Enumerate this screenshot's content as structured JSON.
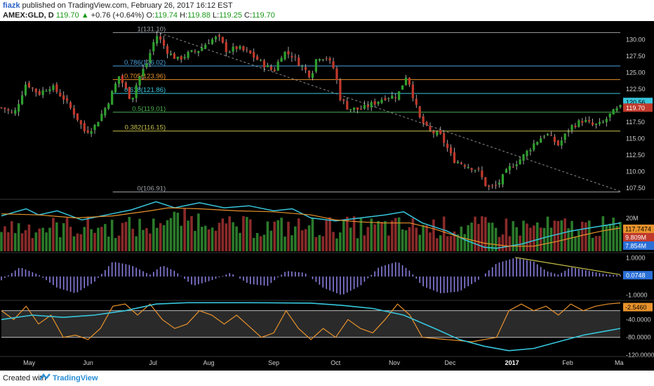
{
  "header": {
    "author": "fiazk",
    "published": "published on TradingView.com, February 26, 2017 16:12 EST",
    "symbol": "AMEX:GLD, D",
    "last": "119.70",
    "change": "+0.76 (+0.64%)",
    "open_label": "O:",
    "open": "119.74",
    "high_label": "H:",
    "high": "119.88",
    "low_label": "L:",
    "low": "119.25",
    "close_label": "C:",
    "close": "119.70"
  },
  "footer": {
    "created_with": "Created with",
    "brand": "TradingView"
  },
  "colors": {
    "up": "#2ea02e",
    "down": "#c0392b",
    "cyan": "#37c6dc",
    "orange": "#e8922c",
    "purple": "#8a7fe0",
    "bg": "#000000"
  },
  "chart_data": {
    "type": "candlestick",
    "x_labels": [
      "May",
      "Jun",
      "Jul",
      "Aug",
      "Sep",
      "Oct",
      "Nov",
      "Dec",
      "2017",
      "Feb",
      "Ma"
    ],
    "price_ticks": [
      "130.00",
      "127.50",
      "125.00",
      "122.50",
      "120.00",
      "117.50",
      "115.00",
      "112.50",
      "110.00",
      "107.50"
    ],
    "price_range": [
      106.0,
      132.2
    ],
    "fib_levels": [
      {
        "label": "1(131.10)",
        "value": 131.1,
        "color": "#9aa0a6"
      },
      {
        "label": "0.786(126.02)",
        "value": 126.02,
        "color": "#4aa3df"
      },
      {
        "label": "0.705(123.96)",
        "value": 123.96,
        "color": "#e8922c"
      },
      {
        "label": "0.618(121.86)",
        "value": 121.86,
        "color": "#37c6dc"
      },
      {
        "label": "0.5(119.01)",
        "value": 119.01,
        "color": "#4caf50"
      },
      {
        "label": "0.382(116.15)",
        "value": 116.15,
        "color": "#c8c24a"
      },
      {
        "label": "0(106.91)",
        "value": 106.91,
        "color": "#9aa0a6"
      }
    ],
    "price_path": [
      [
        0.005,
        119.6
      ],
      [
        0.02,
        118.6
      ],
      [
        0.04,
        123.5
      ],
      [
        0.06,
        121.8
      ],
      [
        0.08,
        123.0
      ],
      [
        0.1,
        121.2
      ],
      [
        0.12,
        118.5
      ],
      [
        0.135,
        116.0
      ],
      [
        0.15,
        116.8
      ],
      [
        0.17,
        120.0
      ],
      [
        0.19,
        124.5
      ],
      [
        0.21,
        120.8
      ],
      [
        0.22,
        123.8
      ],
      [
        0.235,
        126.5
      ],
      [
        0.25,
        130.8
      ],
      [
        0.26,
        129.5
      ],
      [
        0.27,
        128.0
      ],
      [
        0.285,
        127.0
      ],
      [
        0.3,
        127.8
      ],
      [
        0.32,
        128.5
      ],
      [
        0.335,
        129.8
      ],
      [
        0.35,
        130.4
      ],
      [
        0.365,
        128.2
      ],
      [
        0.38,
        128.8
      ],
      [
        0.4,
        128.0
      ],
      [
        0.42,
        126.5
      ],
      [
        0.44,
        125.2
      ],
      [
        0.455,
        128.2
      ],
      [
        0.47,
        127.6
      ],
      [
        0.485,
        126.0
      ],
      [
        0.5,
        124.5
      ],
      [
        0.51,
        127.5
      ],
      [
        0.525,
        127.3
      ],
      [
        0.54,
        125.2
      ],
      [
        0.545,
        121.5
      ],
      [
        0.56,
        119.6
      ],
      [
        0.58,
        119.4
      ],
      [
        0.6,
        120.3
      ],
      [
        0.62,
        121.3
      ],
      [
        0.64,
        121.5
      ],
      [
        0.655,
        124.8
      ],
      [
        0.665,
        121.5
      ],
      [
        0.675,
        118.2
      ],
      [
        0.69,
        116.2
      ],
      [
        0.71,
        115.4
      ],
      [
        0.73,
        111.8
      ],
      [
        0.75,
        111.0
      ],
      [
        0.77,
        110.2
      ],
      [
        0.785,
        107.5
      ],
      [
        0.8,
        107.8
      ],
      [
        0.82,
        110.5
      ],
      [
        0.84,
        112.0
      ],
      [
        0.86,
        114.2
      ],
      [
        0.88,
        115.8
      ],
      [
        0.9,
        114.0
      ],
      [
        0.92,
        116.8
      ],
      [
        0.94,
        117.8
      ],
      [
        0.955,
        117.0
      ],
      [
        0.97,
        117.2
      ],
      [
        0.985,
        118.8
      ],
      [
        1.0,
        119.7
      ]
    ],
    "trend_line": [
      [
        0.25,
        131.2
      ],
      [
        1.0,
        107.0
      ]
    ],
    "last_labels": [
      {
        "value": 120.56,
        "text": "120.56",
        "bg": "#37c6dc",
        "fg": "#000000"
      },
      {
        "value": 119.7,
        "text": "119.70",
        "bg": "#c0392b",
        "fg": "#ffffff"
      }
    ],
    "volume": {
      "ticks": [
        "20M"
      ],
      "labels": [
        {
          "text": "117.7474",
          "bg": "#e8922c",
          "fg": "#000000"
        },
        {
          "text": "9.809M",
          "bg": "#c0392b",
          "fg": "#ffffff"
        },
        {
          "text": "7.854M",
          "bg": "#2a6fd6",
          "fg": "#ffffff"
        }
      ],
      "price_overlay": [
        [
          0,
          0.7
        ],
        [
          0.04,
          0.84
        ],
        [
          0.06,
          0.72
        ],
        [
          0.09,
          0.8
        ],
        [
          0.13,
          0.62
        ],
        [
          0.17,
          0.72
        ],
        [
          0.21,
          0.82
        ],
        [
          0.25,
          0.98
        ],
        [
          0.28,
          0.86
        ],
        [
          0.32,
          0.96
        ],
        [
          0.36,
          0.86
        ],
        [
          0.4,
          0.9
        ],
        [
          0.44,
          0.8
        ],
        [
          0.47,
          0.84
        ],
        [
          0.5,
          0.66
        ],
        [
          0.54,
          0.6
        ],
        [
          0.58,
          0.66
        ],
        [
          0.62,
          0.72
        ],
        [
          0.65,
          0.78
        ],
        [
          0.68,
          0.56
        ],
        [
          0.72,
          0.4
        ],
        [
          0.75,
          0.22
        ],
        [
          0.78,
          0.08
        ],
        [
          0.8,
          0.06
        ],
        [
          0.84,
          0.14
        ],
        [
          0.88,
          0.28
        ],
        [
          0.92,
          0.4
        ],
        [
          0.96,
          0.48
        ],
        [
          1.0,
          0.56
        ]
      ],
      "ma_overlay": [
        [
          0,
          0.74
        ],
        [
          0.06,
          0.72
        ],
        [
          0.12,
          0.66
        ],
        [
          0.18,
          0.7
        ],
        [
          0.24,
          0.8
        ],
        [
          0.27,
          0.86
        ],
        [
          0.32,
          0.84
        ],
        [
          0.38,
          0.8
        ],
        [
          0.44,
          0.78
        ],
        [
          0.5,
          0.72
        ],
        [
          0.54,
          0.62
        ],
        [
          0.58,
          0.58
        ],
        [
          0.62,
          0.56
        ],
        [
          0.66,
          0.56
        ],
        [
          0.7,
          0.44
        ],
        [
          0.74,
          0.28
        ],
        [
          0.78,
          0.16
        ],
        [
          0.82,
          0.1
        ],
        [
          0.86,
          0.1
        ],
        [
          0.9,
          0.2
        ],
        [
          0.94,
          0.32
        ],
        [
          0.97,
          0.4
        ],
        [
          1.0,
          0.46
        ]
      ]
    },
    "histogram": {
      "ticks": [
        {
          "text": "1.0000",
          "value": 1.0
        },
        {
          "text": "-1.0000",
          "value": -1.0
        }
      ],
      "label": {
        "text": "0.0748",
        "bg": "#2a6fd6",
        "fg": "#ffffff"
      },
      "range": [
        -1.2,
        1.2
      ],
      "wave": [
        [
          0,
          -0.2
        ],
        [
          0.03,
          0.5
        ],
        [
          0.06,
          0.1
        ],
        [
          0.09,
          -0.6
        ],
        [
          0.12,
          -0.9
        ],
        [
          0.15,
          -0.3
        ],
        [
          0.18,
          0.8
        ],
        [
          0.21,
          0.6
        ],
        [
          0.24,
          0.1
        ],
        [
          0.26,
          0.6
        ],
        [
          0.28,
          0.3
        ],
        [
          0.31,
          -0.5
        ],
        [
          0.34,
          -0.2
        ],
        [
          0.37,
          0.2
        ],
        [
          0.4,
          -0.4
        ],
        [
          0.43,
          -0.5
        ],
        [
          0.46,
          0.3
        ],
        [
          0.49,
          0.2
        ],
        [
          0.52,
          -0.6
        ],
        [
          0.55,
          -1.0
        ],
        [
          0.58,
          -0.5
        ],
        [
          0.61,
          0.5
        ],
        [
          0.64,
          0.8
        ],
        [
          0.66,
          0.3
        ],
        [
          0.68,
          -0.5
        ],
        [
          0.71,
          -0.9
        ],
        [
          0.74,
          -0.8
        ],
        [
          0.77,
          -0.2
        ],
        [
          0.8,
          0.7
        ],
        [
          0.83,
          1.0
        ],
        [
          0.86,
          0.8
        ],
        [
          0.88,
          0.3
        ],
        [
          0.9,
          0.1
        ],
        [
          0.92,
          0.5
        ],
        [
          0.95,
          0.3
        ],
        [
          0.98,
          0.1
        ],
        [
          1.0,
          0.07
        ]
      ],
      "trend_line": [
        [
          0.83,
          1.02
        ],
        [
          1.0,
          0.1
        ]
      ]
    },
    "oscillator": {
      "ticks": [
        {
          "text": "-40.0000",
          "value": -40
        },
        {
          "text": "-80.0000",
          "value": -80
        },
        {
          "text": "-120.0000",
          "value": -120
        }
      ],
      "label": {
        "text": "-2.5460",
        "bg": "#e8922c",
        "fg": "#000000"
      },
      "range": [
        -120,
        0
      ],
      "band": [
        -80,
        -20
      ],
      "fast": [
        [
          0,
          -20
        ],
        [
          0.02,
          -40
        ],
        [
          0.04,
          -10
        ],
        [
          0.06,
          -50
        ],
        [
          0.08,
          -30
        ],
        [
          0.1,
          -80
        ],
        [
          0.12,
          -75
        ],
        [
          0.14,
          -85
        ],
        [
          0.16,
          -60
        ],
        [
          0.18,
          -10
        ],
        [
          0.2,
          -5
        ],
        [
          0.22,
          -30
        ],
        [
          0.24,
          -5
        ],
        [
          0.26,
          -40
        ],
        [
          0.28,
          -60
        ],
        [
          0.3,
          -50
        ],
        [
          0.32,
          -20
        ],
        [
          0.34,
          -30
        ],
        [
          0.36,
          -50
        ],
        [
          0.38,
          -30
        ],
        [
          0.4,
          -55
        ],
        [
          0.42,
          -80
        ],
        [
          0.44,
          -70
        ],
        [
          0.46,
          -20
        ],
        [
          0.48,
          -60
        ],
        [
          0.5,
          -85
        ],
        [
          0.52,
          -60
        ],
        [
          0.54,
          -80
        ],
        [
          0.56,
          -40
        ],
        [
          0.58,
          -60
        ],
        [
          0.6,
          -70
        ],
        [
          0.62,
          -40
        ],
        [
          0.64,
          -5
        ],
        [
          0.66,
          -30
        ],
        [
          0.68,
          -80
        ],
        [
          0.72,
          -85
        ],
        [
          0.76,
          -90
        ],
        [
          0.8,
          -80
        ],
        [
          0.82,
          -20
        ],
        [
          0.84,
          -5
        ],
        [
          0.86,
          -20
        ],
        [
          0.88,
          -10
        ],
        [
          0.9,
          -30
        ],
        [
          0.92,
          -5
        ],
        [
          0.94,
          -20
        ],
        [
          0.96,
          -10
        ],
        [
          0.98,
          -5
        ],
        [
          1.0,
          -2.5
        ]
      ],
      "slow": [
        [
          0,
          -40
        ],
        [
          0.05,
          -30
        ],
        [
          0.1,
          -35
        ],
        [
          0.15,
          -30
        ],
        [
          0.2,
          -20
        ],
        [
          0.25,
          -5
        ],
        [
          0.3,
          -2
        ],
        [
          0.4,
          -2
        ],
        [
          0.5,
          -3
        ],
        [
          0.55,
          -8
        ],
        [
          0.6,
          -15
        ],
        [
          0.65,
          -30
        ],
        [
          0.7,
          -60
        ],
        [
          0.74,
          -85
        ],
        [
          0.78,
          -100
        ],
        [
          0.82,
          -110
        ],
        [
          0.86,
          -105
        ],
        [
          0.9,
          -90
        ],
        [
          0.94,
          -75
        ],
        [
          0.98,
          -65
        ],
        [
          1.0,
          -60
        ]
      ]
    }
  }
}
